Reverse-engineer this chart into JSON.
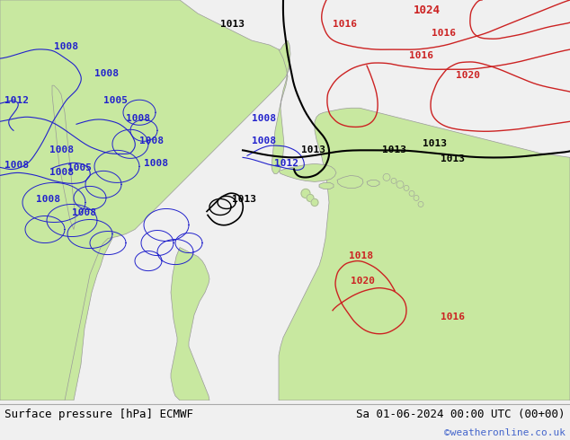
{
  "title_left": "Surface pressure [hPa] ECMWF",
  "title_right": "Sa 01-06-2024 00:00 UTC (00+00)",
  "watermark": "©weatheronline.co.uk",
  "bg_color": "#d8d8d8",
  "land_green": "#c8e8a0",
  "watermark_color": "#4466cc",
  "bottom_bar_color": "#f0f0f0",
  "contour_blue": "#2222cc",
  "contour_red": "#cc2222",
  "contour_black": "#000000",
  "figure_width": 6.34,
  "figure_height": 4.9,
  "dpi": 100,
  "label_fontsize": 8
}
